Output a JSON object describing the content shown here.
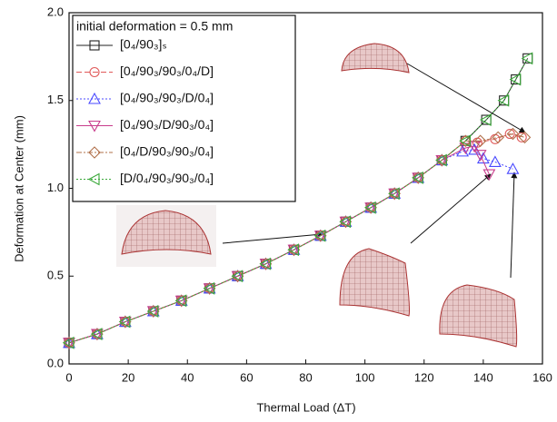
{
  "chart_data": {
    "type": "line",
    "xlabel": "Thermal Load (ΔT)",
    "ylabel": "Deformation at Center (mm)",
    "legend_title": "initial deformation = 0.5 mm",
    "legend": "upper left",
    "xlim": [
      0,
      160
    ],
    "xticks": [
      0,
      20,
      40,
      60,
      80,
      100,
      120,
      140,
      160
    ],
    "ylim": [
      0,
      2.0
    ],
    "yticks": [
      {
        "value": 0,
        "label": "0.0"
      },
      0.5,
      {
        "value": 1,
        "label": "1.0"
      },
      1.5,
      {
        "value": 2,
        "label": "2.0"
      }
    ],
    "series": [
      {
        "name": "[0₄/90₃]ₛ",
        "color": "#222222",
        "marker": "square",
        "dash": "solid",
        "x": [
          0,
          9.5,
          19,
          28.5,
          38,
          47.5,
          57,
          66.5,
          76,
          85,
          93.5,
          102,
          110,
          118,
          126,
          134,
          141,
          147,
          151,
          155
        ],
        "values": [
          0.12,
          0.17,
          0.24,
          0.3,
          0.36,
          0.43,
          0.5,
          0.57,
          0.65,
          0.73,
          0.81,
          0.89,
          0.97,
          1.06,
          1.16,
          1.27,
          1.39,
          1.5,
          1.62,
          1.74
        ]
      },
      {
        "name": "[0₄/90₃/90₃/0₄/D]",
        "color": "#e05a5a",
        "marker": "circle",
        "dash": "dashed",
        "x": [
          0,
          9.5,
          19,
          28.5,
          38,
          47.5,
          57,
          66.5,
          76,
          85,
          93.5,
          102,
          110,
          118,
          126,
          134,
          138,
          144,
          149,
          153
        ],
        "values": [
          0.12,
          0.17,
          0.24,
          0.3,
          0.36,
          0.43,
          0.5,
          0.57,
          0.65,
          0.73,
          0.81,
          0.89,
          0.97,
          1.06,
          1.16,
          1.27,
          1.26,
          1.28,
          1.31,
          1.29
        ]
      },
      {
        "name": "[0₄/90₃/90₃/D/0₄]",
        "color": "#4a4aff",
        "marker": "triangle-up",
        "dash": "dotted",
        "x": [
          0,
          9.5,
          19,
          28.5,
          38,
          47.5,
          57,
          66.5,
          76,
          85,
          93.5,
          102,
          110,
          118,
          126,
          133,
          137,
          140,
          144,
          150
        ],
        "values": [
          0.12,
          0.17,
          0.24,
          0.3,
          0.36,
          0.43,
          0.5,
          0.57,
          0.65,
          0.73,
          0.81,
          0.89,
          0.97,
          1.06,
          1.16,
          1.21,
          1.22,
          1.17,
          1.15,
          1.11
        ]
      },
      {
        "name": "[0₄/90₃/D/90₃/0₄]",
        "color": "#c83c8c",
        "marker": "triangle-down",
        "dash": "solid",
        "x": [
          0,
          9.5,
          19,
          28.5,
          38,
          47.5,
          57,
          66.5,
          76,
          85,
          93.5,
          102,
          110,
          118,
          126,
          134,
          137,
          139,
          142
        ],
        "values": [
          0.12,
          0.17,
          0.24,
          0.3,
          0.36,
          0.43,
          0.5,
          0.57,
          0.65,
          0.73,
          0.81,
          0.89,
          0.97,
          1.06,
          1.16,
          1.23,
          1.24,
          1.19,
          1.08
        ]
      },
      {
        "name": "[0₄/D/90₃/90₃/0₄]",
        "color": "#b0704a",
        "marker": "diamond",
        "dash": "dashdot",
        "x": [
          0,
          9.5,
          19,
          28.5,
          38,
          47.5,
          57,
          66.5,
          76,
          85,
          93.5,
          102,
          110,
          118,
          126,
          134,
          139,
          145,
          150,
          154
        ],
        "values": [
          0.12,
          0.17,
          0.24,
          0.3,
          0.36,
          0.43,
          0.5,
          0.57,
          0.65,
          0.73,
          0.81,
          0.89,
          0.97,
          1.06,
          1.16,
          1.27,
          1.27,
          1.29,
          1.31,
          1.29
        ]
      },
      {
        "name": "[D/0₄/90₃/90₃/0₄]",
        "color": "#3aa83a",
        "marker": "triangle-left",
        "dash": "dotted",
        "x": [
          0,
          9.5,
          19,
          28.5,
          38,
          47.5,
          57,
          66.5,
          76,
          85,
          93.5,
          102,
          110,
          118,
          126,
          134,
          141,
          147,
          151,
          155
        ],
        "values": [
          0.12,
          0.17,
          0.24,
          0.3,
          0.36,
          0.43,
          0.5,
          0.57,
          0.65,
          0.73,
          0.81,
          0.89,
          0.97,
          1.06,
          1.16,
          1.27,
          1.39,
          1.5,
          1.62,
          1.74
        ]
      }
    ]
  }
}
